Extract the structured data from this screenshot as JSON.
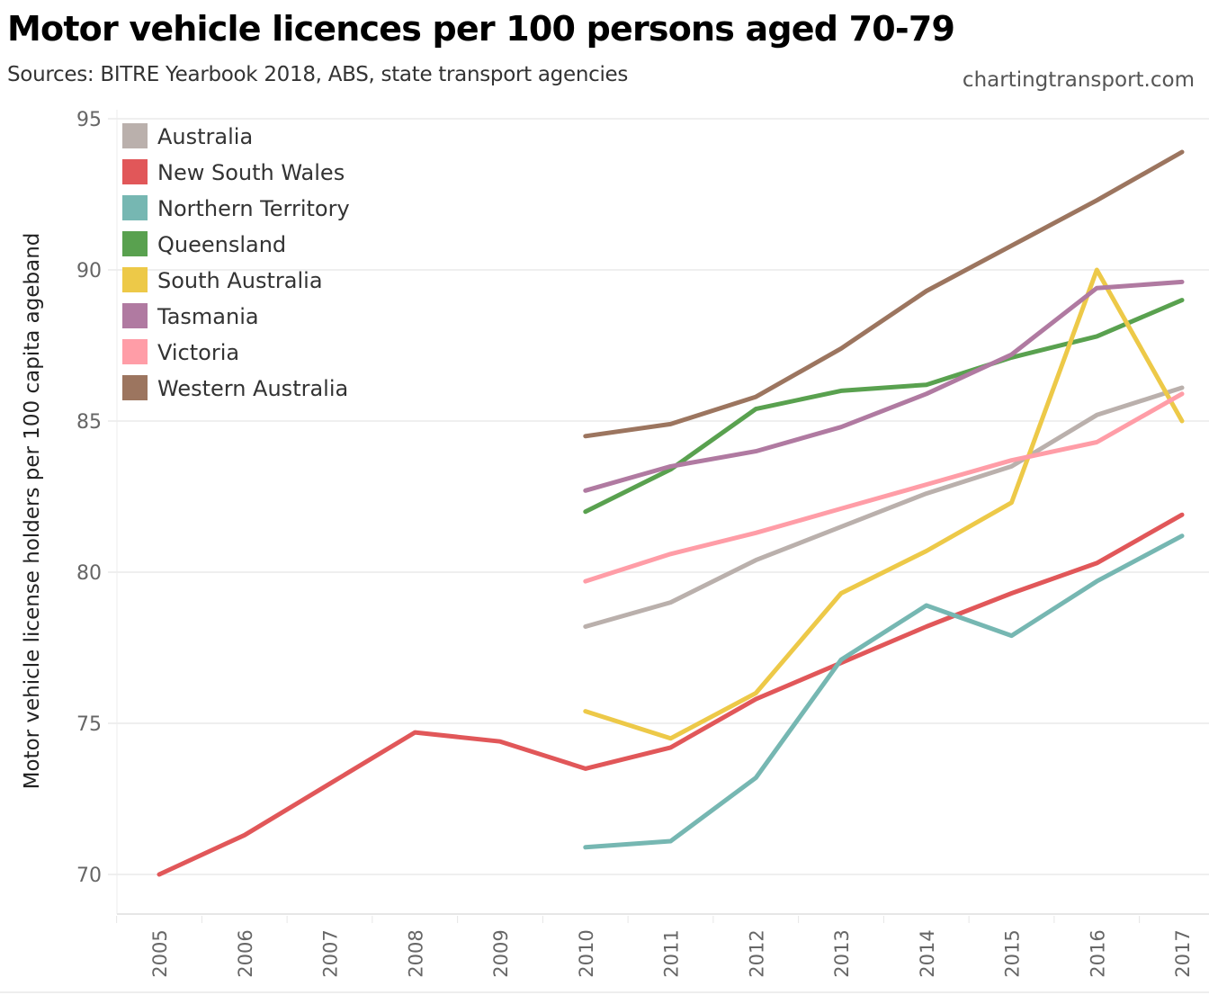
{
  "header": {
    "title": "Motor vehicle licences per 100 persons aged 70-79",
    "subtitle": "Sources: BITRE Yearbook 2018, ABS, state transport agencies",
    "credit": "chartingtransport.com"
  },
  "chart_data": {
    "type": "line",
    "title": "Motor vehicle licences per 100 persons aged 70-79",
    "subtitle": "Sources: BITRE Yearbook 2018, ABS, state transport agencies",
    "xlabel": "",
    "ylabel": "Motor vehicle license holders per 100 capita ageband",
    "x": [
      2005,
      2006,
      2007,
      2008,
      2009,
      2010,
      2011,
      2012,
      2013,
      2014,
      2015,
      2016,
      2017
    ],
    "ylim": [
      68.7,
      95.3
    ],
    "yticks": [
      70,
      75,
      80,
      85,
      90,
      95
    ],
    "grid": true,
    "legend_position": "top-left",
    "series": [
      {
        "name": "Australia",
        "color": "#bab0ac",
        "values": [
          null,
          null,
          null,
          null,
          null,
          78.2,
          79.0,
          80.4,
          81.5,
          82.6,
          83.5,
          85.2,
          86.1
        ]
      },
      {
        "name": "New South Wales",
        "color": "#e15759",
        "values": [
          70.0,
          71.3,
          73.0,
          74.7,
          74.4,
          73.5,
          74.2,
          75.8,
          77.0,
          78.2,
          79.3,
          80.3,
          81.9
        ]
      },
      {
        "name": "Northern Territory",
        "color": "#76b7b2",
        "values": [
          null,
          null,
          null,
          null,
          null,
          70.9,
          71.1,
          73.2,
          77.1,
          78.9,
          77.9,
          79.7,
          81.2
        ]
      },
      {
        "name": "Queensland",
        "color": "#59a14f",
        "values": [
          null,
          null,
          null,
          null,
          null,
          82.0,
          83.4,
          85.4,
          86.0,
          86.2,
          87.1,
          87.8,
          89.0
        ]
      },
      {
        "name": "South Australia",
        "color": "#edc948",
        "values": [
          null,
          null,
          null,
          null,
          null,
          75.4,
          74.5,
          76.0,
          79.3,
          80.7,
          82.3,
          90.0,
          85.0
        ]
      },
      {
        "name": "Tasmania",
        "color": "#b07aa1",
        "values": [
          null,
          null,
          null,
          null,
          null,
          82.7,
          83.5,
          84.0,
          84.8,
          85.9,
          87.2,
          89.4,
          89.6
        ]
      },
      {
        "name": "Victoria",
        "color": "#ff9da7",
        "values": [
          null,
          null,
          null,
          null,
          null,
          79.7,
          80.6,
          81.3,
          82.1,
          82.9,
          83.7,
          84.3,
          85.9
        ]
      },
      {
        "name": "Western Australia",
        "color": "#9c755f",
        "values": [
          null,
          null,
          null,
          null,
          null,
          84.5,
          84.9,
          85.8,
          87.4,
          89.3,
          90.8,
          92.3,
          93.9
        ]
      }
    ]
  }
}
